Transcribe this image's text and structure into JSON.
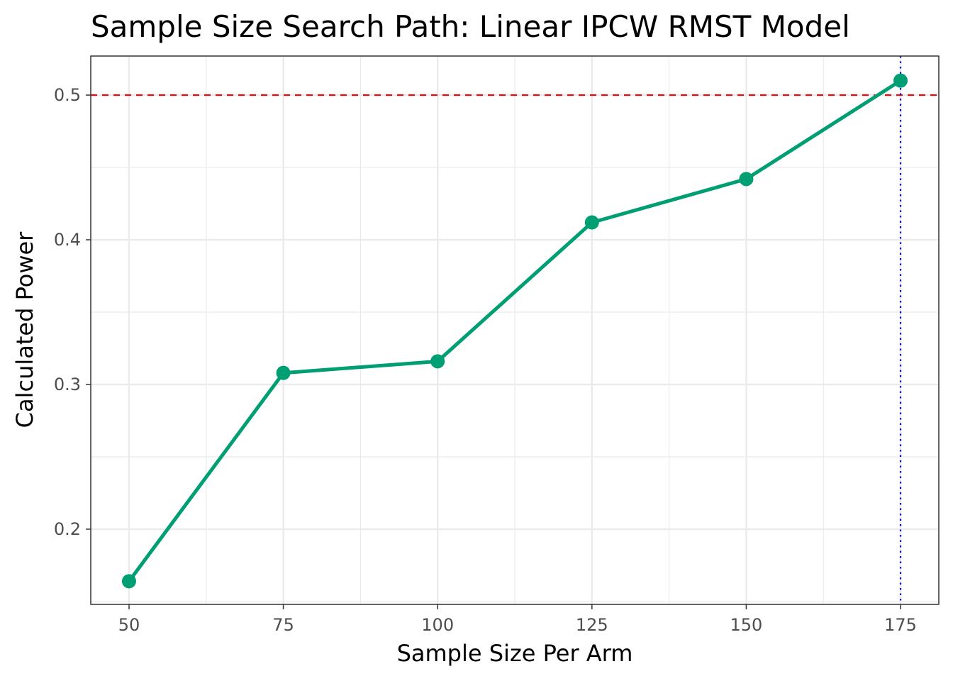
{
  "chart_data": {
    "type": "line",
    "title": "Sample Size Search Path: Linear IPCW RMST Model",
    "xlabel": "Sample Size Per Arm",
    "ylabel": "Calculated Power",
    "x": [
      50,
      75,
      100,
      125,
      150,
      175
    ],
    "series": [
      {
        "values": [
          0.164,
          0.308,
          0.316,
          0.412,
          0.442,
          0.51
        ]
      }
    ],
    "xlim": [
      43.8,
      181.2
    ],
    "ylim": [
      0.148,
      0.527
    ],
    "x_ticks": [
      50,
      75,
      100,
      125,
      150,
      175
    ],
    "x_tick_labels": [
      "50",
      "75",
      "100",
      "125",
      "150",
      "175"
    ],
    "y_ticks": [
      0.2,
      0.3,
      0.4,
      0.5
    ],
    "y_tick_labels": [
      "0.2",
      "0.3",
      "0.4",
      "0.5"
    ],
    "reference_lines": {
      "horizontal": {
        "value": 0.5,
        "color": "#ff0000",
        "style": "dashed"
      },
      "vertical": {
        "value": 175,
        "color": "#0000ff",
        "style": "dotted"
      }
    },
    "grid": true,
    "legend": "none",
    "colors": {
      "line": "#009e73",
      "points": "#009e73",
      "grid": "#ebebeb",
      "panel_border": "#333333"
    }
  }
}
